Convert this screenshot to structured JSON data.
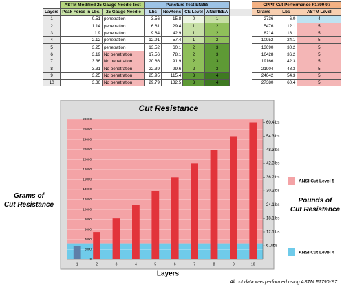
{
  "table": {
    "group_headers": [
      "ASTM Modified 25 Gauge Needle test",
      "Puncture Test EN388",
      "CPPT Cut Performance F1790-97"
    ],
    "columns": [
      "Layers",
      "Peak Force in Lbs.",
      "25 Gauge Needle",
      "Lbs",
      "Newtons",
      "CE Level",
      "ANSI/ISEA",
      "Grams",
      "Lbs",
      "ASTM Level"
    ],
    "rows": [
      [
        "1",
        "0.51",
        "penetration",
        "3.56",
        "15.8",
        "0",
        "1",
        "2736",
        "6.0",
        "4"
      ],
      [
        "2",
        "1.14",
        "penetration",
        "6.61",
        "29.4",
        "1",
        "2",
        "5476",
        "12.1",
        "5"
      ],
      [
        "3",
        "1.9",
        "penetration",
        "9.64",
        "42.9",
        "1",
        "2",
        "8214",
        "18.1",
        "5"
      ],
      [
        "4",
        "2.12",
        "penetration",
        "12.91",
        "57.4",
        "1",
        "2",
        "10952",
        "24.1",
        "5"
      ],
      [
        "5",
        "3.25",
        "penetration",
        "13.52",
        "60.1",
        "2",
        "3",
        "13690",
        "30.2",
        "5"
      ],
      [
        "6",
        "3.19",
        "No penetration",
        "17.56",
        "78.1",
        "2",
        "3",
        "16428",
        "36.2",
        "5"
      ],
      [
        "7",
        "3.36",
        "No penetration",
        "20.66",
        "91.9",
        "2",
        "3",
        "19166",
        "42.3",
        "5"
      ],
      [
        "8",
        "3.31",
        "No penetration",
        "22.39",
        "99.6",
        "2",
        "3",
        "21904",
        "48.3",
        "5"
      ],
      [
        "9",
        "3.25",
        "No penetration",
        "25.95",
        "115.4",
        "3",
        "4",
        "24642",
        "54.3",
        "5"
      ],
      [
        "10",
        "3.36",
        "No penetration",
        "29.79",
        "132.5",
        "3",
        "4",
        "27380",
        "60.4",
        "5"
      ]
    ]
  },
  "chart_data": {
    "type": "bar",
    "title": "Cut Resistance",
    "y_label": "Grams of Cut Resistance",
    "y2_label": "Pounds of Cut Resistance",
    "x_label": "Layers",
    "footnote": "All cut data was performed using ASTM F1790-'97",
    "categories": [
      "1",
      "2",
      "3",
      "4",
      "5",
      "6",
      "7",
      "8",
      "9",
      "10"
    ],
    "values": [
      2736,
      5476,
      8214,
      10952,
      13690,
      16428,
      19166,
      21904,
      24642,
      27380
    ],
    "colors": [
      "#5f7fa8",
      "#e2343b",
      "#e2343b",
      "#e2343b",
      "#e2343b",
      "#e2343b",
      "#e2343b",
      "#e2343b",
      "#e2343b",
      "#e2343b"
    ],
    "ylim": [
      0,
      28000
    ],
    "yticks": [
      0,
      2000,
      4000,
      6000,
      8000,
      10000,
      12000,
      14000,
      16000,
      18000,
      20000,
      22000,
      24000,
      26000,
      28000
    ],
    "y2lim": [
      0,
      61.7
    ],
    "y2ticks": [
      {
        "value": 6.0,
        "label": "6.0lbs"
      },
      {
        "value": 12.1,
        "label": "12.1lbs"
      },
      {
        "value": 18.1,
        "label": "18.1lbs"
      },
      {
        "value": 24.1,
        "label": "24.1lbs"
      },
      {
        "value": 30.2,
        "label": "30.2lbs"
      },
      {
        "value": 36.2,
        "label": "36.2lbs"
      },
      {
        "value": 42.3,
        "label": "42.3lbs"
      },
      {
        "value": 48.3,
        "label": "48.3lbs"
      },
      {
        "value": 54.3,
        "label": "54.3lbs"
      },
      {
        "value": 60.4,
        "label": "60.4lbs"
      }
    ],
    "bands": [
      {
        "label": "ANSI Cut Level 5",
        "from": 3200,
        "to": 28000,
        "color": "#f4a3a6"
      },
      {
        "label": "ANSI Cut Level 4",
        "from": 0,
        "to": 3200,
        "color": "#6fcbea"
      }
    ],
    "grid": true
  }
}
